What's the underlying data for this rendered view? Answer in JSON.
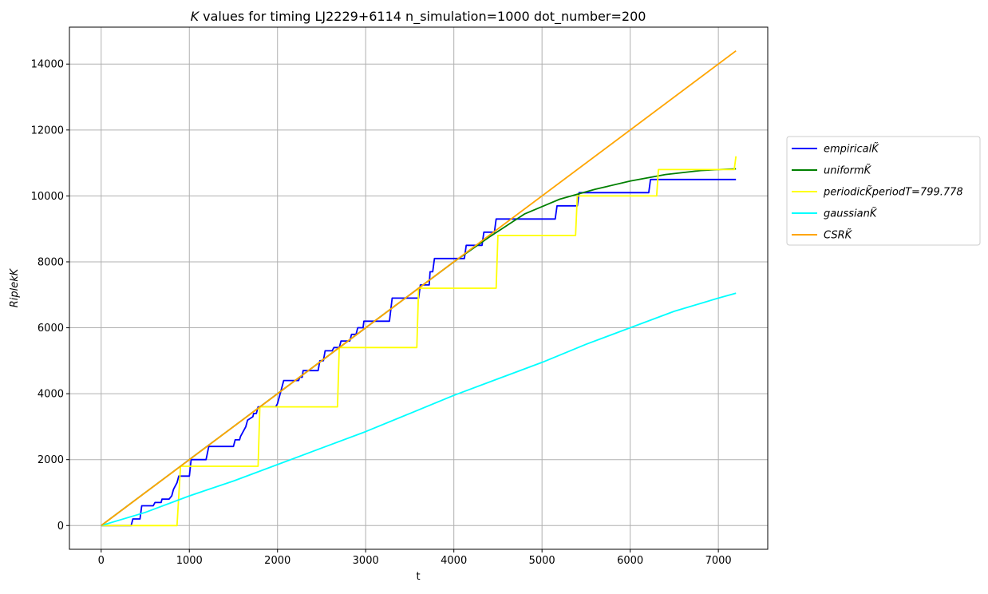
{
  "chart_data": {
    "type": "line",
    "title": "K values for timing LJ2229+6114 n_simulation=1000 dot_number=200",
    "title_prefix": "K",
    "title_rest": " values for timing LJ2229+6114 n_simulation=1000 dot_number=200",
    "xlabel": "t",
    "ylabel": "RiplekK",
    "xlim": [
      -360,
      7560
    ],
    "ylim": [
      -720,
      15120
    ],
    "x_ticks": [
      0,
      1000,
      2000,
      3000,
      4000,
      5000,
      6000,
      7000
    ],
    "y_ticks": [
      0,
      2000,
      4000,
      6000,
      8000,
      10000,
      12000,
      14000
    ],
    "grid": true,
    "legend_position": "outside-right",
    "series": [
      {
        "name": "empiricalK̃",
        "color": "#0000ff",
        "x": [
          0,
          340,
          360,
          440,
          460,
          590,
          610,
          680,
          690,
          760,
          770,
          800,
          820,
          860,
          880,
          1000,
          1020,
          1190,
          1220,
          1500,
          1520,
          1570,
          1580,
          1640,
          1660,
          1720,
          1730,
          1760,
          1780,
          1980,
          2000,
          2040,
          2070,
          2240,
          2250,
          2280,
          2290,
          2340,
          2350,
          2460,
          2480,
          2520,
          2540,
          2620,
          2640,
          2700,
          2720,
          2820,
          2840,
          2890,
          2910,
          2970,
          2980,
          3270,
          3300,
          3600,
          3620,
          3720,
          3730,
          3760,
          3780,
          4120,
          4140,
          4230,
          4240,
          4320,
          4340,
          4460,
          4480,
          5150,
          5170,
          5330,
          5350,
          5400,
          5420,
          6210,
          6230,
          7200
        ],
        "y": [
          0,
          0,
          200,
          200,
          600,
          600,
          700,
          700,
          800,
          800,
          800,
          900,
          1100,
          1300,
          1500,
          1500,
          2000,
          2000,
          2400,
          2400,
          2600,
          2600,
          2700,
          3000,
          3200,
          3300,
          3400,
          3400,
          3600,
          3600,
          3700,
          4100,
          4400,
          4400,
          4500,
          4500,
          4700,
          4700,
          4700,
          4700,
          5000,
          5000,
          5300,
          5300,
          5400,
          5400,
          5600,
          5600,
          5800,
          5800,
          6000,
          6000,
          6200,
          6200,
          6900,
          6900,
          7300,
          7300,
          7700,
          7700,
          8100,
          8100,
          8500,
          8500,
          8500,
          8500,
          8900,
          8900,
          9300,
          9300,
          9700,
          9700,
          9700,
          9700,
          10100,
          10100,
          10500,
          10500
        ]
      },
      {
        "name": "uniformK̃",
        "color": "#008000",
        "x": [
          0,
          400,
          800,
          1200,
          1600,
          2000,
          2400,
          2800,
          3200,
          3600,
          4000,
          4400,
          4800,
          5200,
          5600,
          6000,
          6400,
          6800,
          7000,
          7200
        ],
        "y": [
          0,
          800,
          1600,
          2400,
          3200,
          4000,
          4800,
          5600,
          6400,
          7200,
          8000,
          8750,
          9450,
          9900,
          10200,
          10450,
          10650,
          10770,
          10800,
          10820
        ]
      },
      {
        "name": "periodicK̃periodT=799.778",
        "color": "#ffff00",
        "x": [
          0,
          860,
          900,
          1780,
          1800,
          2680,
          2700,
          3580,
          3600,
          4480,
          4500,
          5380,
          5400,
          6300,
          6320,
          7180,
          7200
        ],
        "y": [
          0,
          0,
          1800,
          1800,
          3600,
          3600,
          5400,
          5400,
          7200,
          7200,
          8800,
          8800,
          10000,
          10000,
          10800,
          10800,
          11200
        ]
      },
      {
        "name": "gaussianK̃",
        "color": "#00ffff",
        "x": [
          0,
          500,
          1000,
          1500,
          2000,
          2500,
          3000,
          3500,
          4000,
          4500,
          5000,
          5500,
          6000,
          6500,
          7000,
          7200
        ],
        "y": [
          0,
          400,
          900,
          1350,
          1850,
          2350,
          2850,
          3400,
          3950,
          4450,
          4950,
          5500,
          6000,
          6500,
          6900,
          7050
        ]
      },
      {
        "name": "CSRK̃",
        "color": "#ffa500",
        "x": [
          0,
          7200
        ],
        "y": [
          0,
          14400
        ]
      }
    ]
  }
}
